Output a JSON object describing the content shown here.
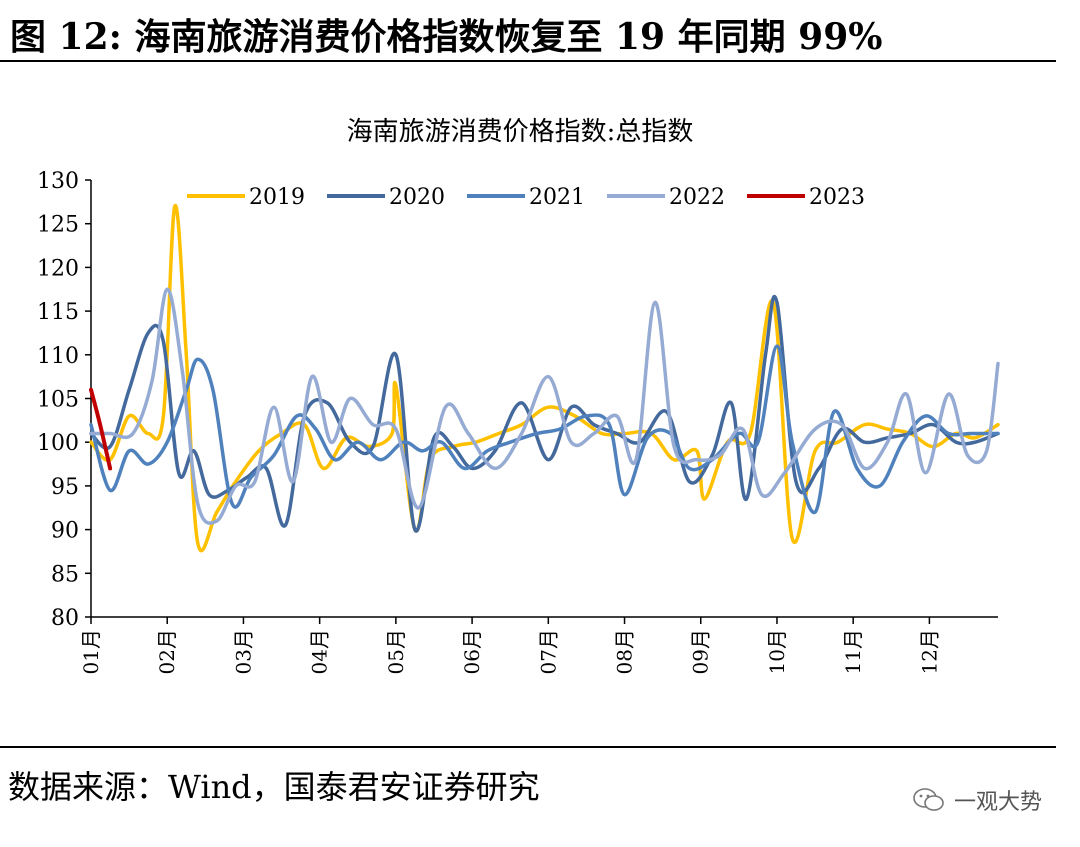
{
  "header": {
    "figure_title": "图 12: 海南旅游消费价格指数恢复至 19 年同期 99%"
  },
  "footer": {
    "source": "数据来源：Wind，国泰君安证券研究",
    "watermark": "一观大势"
  },
  "colors": {
    "2019": "#FFC000",
    "2020": "#44699D",
    "2021": "#4F81BD",
    "2022": "#95ABD3",
    "2023": "#C00000"
  },
  "chart_data": {
    "type": "line",
    "title": "海南旅游消费价格指数:总指数",
    "xlabel": "",
    "ylabel": "",
    "ylim": [
      80,
      130
    ],
    "yticks": [
      80,
      85,
      90,
      95,
      100,
      105,
      110,
      115,
      120,
      125,
      130
    ],
    "xlim": [
      1,
      12.9
    ],
    "x_tick_labels": [
      "01月",
      "02月",
      "03月",
      "04月",
      "05月",
      "06月",
      "07月",
      "08月",
      "09月",
      "10月",
      "11月",
      "12月"
    ],
    "legend": "top",
    "series": [
      {
        "name": "2019",
        "points": [
          [
            1.0,
            100.0
          ],
          [
            1.25,
            98.0
          ],
          [
            1.5,
            103.0
          ],
          [
            1.75,
            101.0
          ],
          [
            1.95,
            103.0
          ],
          [
            2.1,
            127.0
          ],
          [
            2.25,
            110.0
          ],
          [
            2.4,
            88.5
          ],
          [
            2.65,
            92.0
          ],
          [
            2.9,
            95.5
          ],
          [
            3.2,
            99.0
          ],
          [
            3.5,
            101.0
          ],
          [
            3.8,
            102.0
          ],
          [
            4.05,
            97.0
          ],
          [
            4.35,
            100.5
          ],
          [
            4.65,
            99.5
          ],
          [
            4.95,
            101.0
          ],
          [
            5.0,
            106.5
          ],
          [
            5.25,
            90.0
          ],
          [
            5.45,
            98.0
          ],
          [
            5.75,
            99.5
          ],
          [
            6.05,
            100.0
          ],
          [
            6.35,
            101.0
          ],
          [
            6.65,
            102.0
          ],
          [
            7.0,
            104.0
          ],
          [
            7.35,
            103.0
          ],
          [
            7.7,
            101.0
          ],
          [
            8.0,
            101.0
          ],
          [
            8.35,
            101.0
          ],
          [
            8.65,
            98.0
          ],
          [
            8.95,
            99.0
          ],
          [
            9.05,
            93.5
          ],
          [
            9.35,
            100.0
          ],
          [
            9.65,
            101.0
          ],
          [
            9.95,
            116.0
          ],
          [
            10.2,
            89.0
          ],
          [
            10.5,
            99.0
          ],
          [
            10.8,
            100.0
          ],
          [
            11.15,
            102.0
          ],
          [
            11.45,
            101.5
          ],
          [
            11.75,
            101.0
          ],
          [
            12.05,
            99.5
          ],
          [
            12.35,
            101.0
          ],
          [
            12.6,
            100.5
          ],
          [
            12.9,
            102.0
          ]
        ]
      },
      {
        "name": "2020",
        "points": [
          [
            1.0,
            101.0
          ],
          [
            1.25,
            99.5
          ],
          [
            1.5,
            106.0
          ],
          [
            1.75,
            112.5
          ],
          [
            1.95,
            111.5
          ],
          [
            2.15,
            96.5
          ],
          [
            2.35,
            99.0
          ],
          [
            2.55,
            94.0
          ],
          [
            2.8,
            94.5
          ],
          [
            3.05,
            96.0
          ],
          [
            3.3,
            97.0
          ],
          [
            3.55,
            90.5
          ],
          [
            3.8,
            103.0
          ],
          [
            4.1,
            104.5
          ],
          [
            4.4,
            100.0
          ],
          [
            4.7,
            99.5
          ],
          [
            5.0,
            110.0
          ],
          [
            5.25,
            90.0
          ],
          [
            5.5,
            100.5
          ],
          [
            5.75,
            99.5
          ],
          [
            6.0,
            97.0
          ],
          [
            6.3,
            99.0
          ],
          [
            6.65,
            104.5
          ],
          [
            7.0,
            98.0
          ],
          [
            7.3,
            104.0
          ],
          [
            7.6,
            102.0
          ],
          [
            7.9,
            101.0
          ],
          [
            8.2,
            100.0
          ],
          [
            8.55,
            103.5
          ],
          [
            8.85,
            95.5
          ],
          [
            9.15,
            98.5
          ],
          [
            9.4,
            104.5
          ],
          [
            9.6,
            93.5
          ],
          [
            9.85,
            110.0
          ],
          [
            10.0,
            116.0
          ],
          [
            10.25,
            95.5
          ],
          [
            10.55,
            97.0
          ],
          [
            10.85,
            101.5
          ],
          [
            11.15,
            100.0
          ],
          [
            11.45,
            100.5
          ],
          [
            11.75,
            101.0
          ],
          [
            12.05,
            102.0
          ],
          [
            12.35,
            100.0
          ],
          [
            12.6,
            100.0
          ],
          [
            12.9,
            101.0
          ]
        ]
      },
      {
        "name": "2021",
        "points": [
          [
            1.0,
            102.0
          ],
          [
            1.25,
            94.5
          ],
          [
            1.5,
            99.0
          ],
          [
            1.75,
            97.5
          ],
          [
            2.0,
            100.0
          ],
          [
            2.25,
            106.0
          ],
          [
            2.4,
            109.5
          ],
          [
            2.6,
            106.0
          ],
          [
            2.85,
            93.0
          ],
          [
            3.1,
            96.0
          ],
          [
            3.4,
            98.5
          ],
          [
            3.7,
            103.0
          ],
          [
            3.95,
            101.5
          ],
          [
            4.2,
            98.0
          ],
          [
            4.5,
            100.0
          ],
          [
            4.8,
            98.0
          ],
          [
            5.1,
            100.0
          ],
          [
            5.35,
            99.0
          ],
          [
            5.6,
            100.0
          ],
          [
            5.9,
            97.0
          ],
          [
            6.2,
            99.0
          ],
          [
            6.5,
            100.0
          ],
          [
            6.85,
            101.0
          ],
          [
            7.15,
            101.5
          ],
          [
            7.5,
            103.0
          ],
          [
            7.8,
            102.0
          ],
          [
            8.0,
            94.0
          ],
          [
            8.3,
            100.5
          ],
          [
            8.6,
            101.0
          ],
          [
            8.85,
            97.0
          ],
          [
            9.15,
            98.0
          ],
          [
            9.5,
            101.0
          ],
          [
            9.75,
            100.0
          ],
          [
            10.0,
            111.0
          ],
          [
            10.2,
            100.0
          ],
          [
            10.5,
            92.0
          ],
          [
            10.75,
            103.5
          ],
          [
            11.05,
            97.0
          ],
          [
            11.35,
            95.0
          ],
          [
            11.65,
            100.0
          ],
          [
            11.95,
            103.0
          ],
          [
            12.25,
            101.0
          ],
          [
            12.55,
            101.0
          ],
          [
            12.9,
            101.0
          ]
        ]
      },
      {
        "name": "2022",
        "points": [
          [
            1.0,
            101.0
          ],
          [
            1.25,
            101.0
          ],
          [
            1.55,
            101.0
          ],
          [
            1.8,
            107.0
          ],
          [
            2.0,
            117.5
          ],
          [
            2.2,
            108.0
          ],
          [
            2.4,
            93.0
          ],
          [
            2.65,
            91.0
          ],
          [
            2.9,
            95.0
          ],
          [
            3.15,
            95.5
          ],
          [
            3.4,
            104.0
          ],
          [
            3.65,
            95.5
          ],
          [
            3.9,
            107.5
          ],
          [
            4.15,
            100.0
          ],
          [
            4.4,
            105.0
          ],
          [
            4.7,
            102.0
          ],
          [
            5.0,
            101.5
          ],
          [
            5.3,
            92.5
          ],
          [
            5.65,
            104.0
          ],
          [
            5.95,
            101.0
          ],
          [
            6.3,
            97.0
          ],
          [
            6.65,
            101.0
          ],
          [
            7.0,
            107.5
          ],
          [
            7.3,
            100.0
          ],
          [
            7.6,
            101.0
          ],
          [
            7.9,
            103.0
          ],
          [
            8.15,
            98.0
          ],
          [
            8.4,
            116.0
          ],
          [
            8.65,
            99.5
          ],
          [
            8.95,
            98.0
          ],
          [
            9.25,
            98.5
          ],
          [
            9.55,
            101.5
          ],
          [
            9.8,
            94.0
          ],
          [
            10.1,
            96.5
          ],
          [
            10.5,
            101.5
          ],
          [
            10.85,
            102.0
          ],
          [
            11.15,
            97.0
          ],
          [
            11.45,
            100.0
          ],
          [
            11.7,
            105.5
          ],
          [
            11.95,
            96.5
          ],
          [
            12.25,
            105.5
          ],
          [
            12.5,
            98.5
          ],
          [
            12.75,
            99.0
          ],
          [
            12.9,
            109.0
          ]
        ]
      },
      {
        "name": "2023",
        "points": [
          [
            1.0,
            106.0
          ],
          [
            1.12,
            102.0
          ],
          [
            1.25,
            97.0
          ]
        ]
      }
    ]
  }
}
